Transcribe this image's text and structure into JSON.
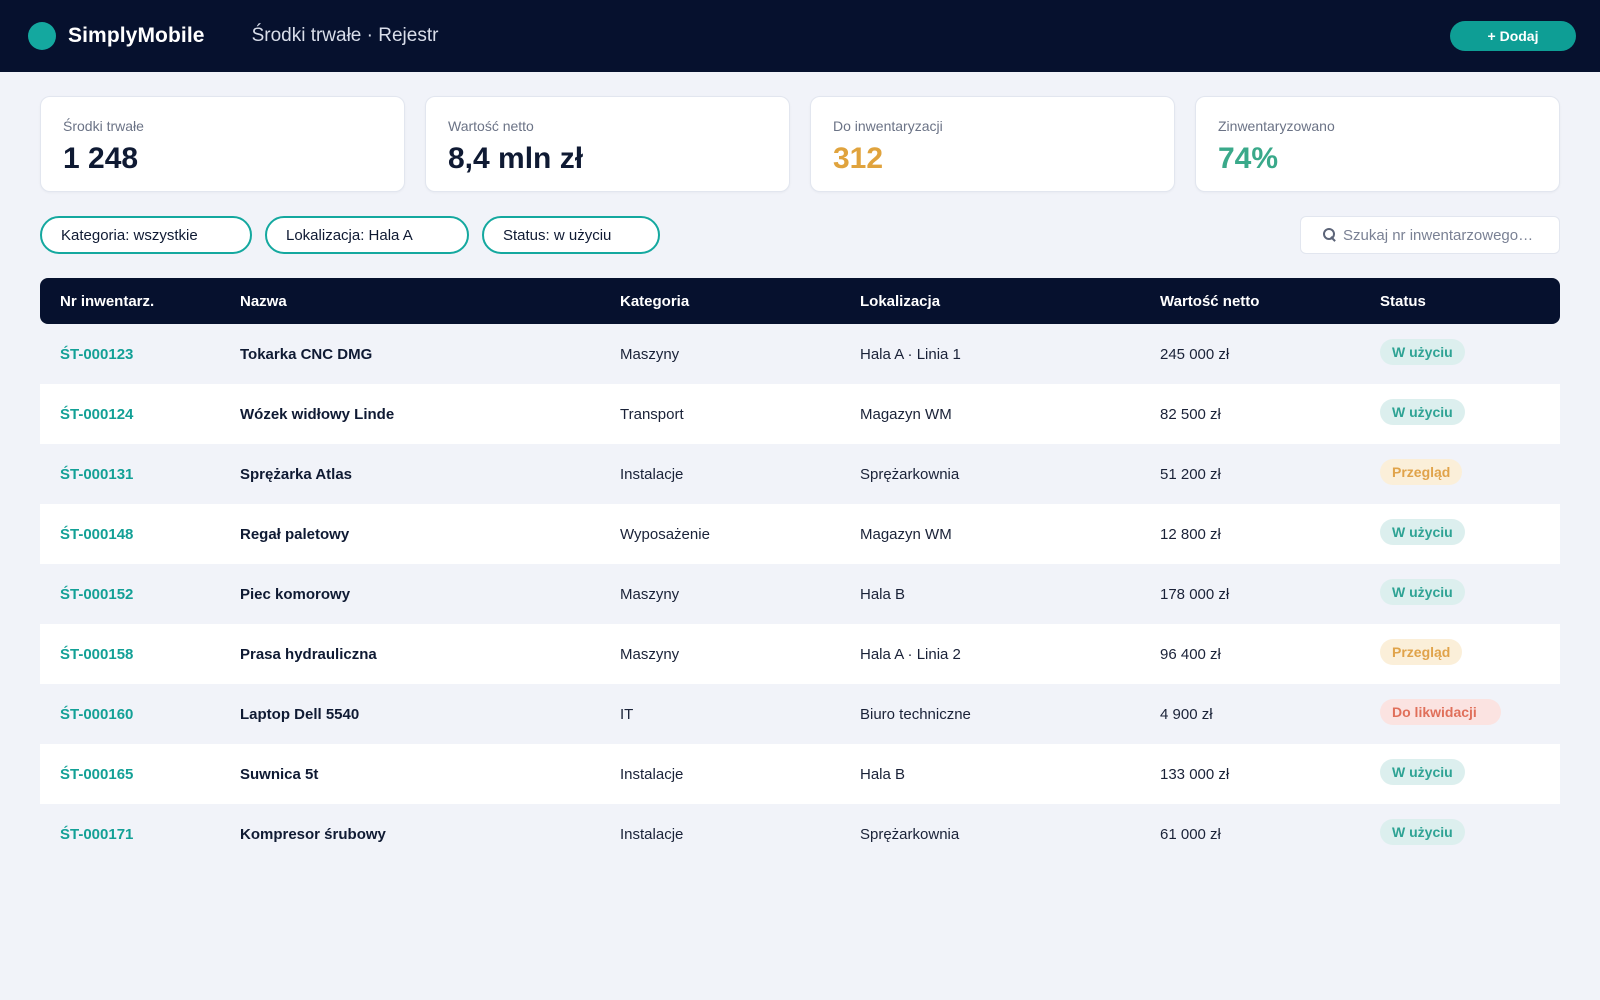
{
  "header": {
    "app_name": "SimplyMobile",
    "page_title": "Środki trwałe · Rejestr",
    "add_label": "+ Dodaj"
  },
  "kpis": [
    {
      "label": "Środki trwałe",
      "value": "1 248",
      "color": "#0f1a33"
    },
    {
      "label": "Wartość netto",
      "value": "8,4 mln zł",
      "color": "#0f1a33"
    },
    {
      "label": "Do inwentaryzacji",
      "value": "312",
      "color": "#e0a33d"
    },
    {
      "label": "Zinwentaryzowano",
      "value": "74%",
      "color": "#3aa98a"
    }
  ],
  "filters": {
    "category": "Kategoria: wszystkie",
    "location": "Lokalizacja: Hala A",
    "status": "Status: w użyciu"
  },
  "search": {
    "placeholder": "Szukaj nr inwentarzowego…"
  },
  "table": {
    "columns": [
      "Nr inwentarz.",
      "Nazwa",
      "Kategoria",
      "Lokalizacja",
      "Wartość netto",
      "Status"
    ],
    "rows": [
      {
        "id": "ŚT-000123",
        "name": "Tokarka CNC DMG",
        "category": "Maszyny",
        "location": "Hala A · Linia 1",
        "value": "245 000 zł",
        "status": "W użyciu",
        "status_type": "use"
      },
      {
        "id": "ŚT-000124",
        "name": "Wózek widłowy Linde",
        "category": "Transport",
        "location": "Magazyn WM",
        "value": "82 500 zł",
        "status": "W użyciu",
        "status_type": "use"
      },
      {
        "id": "ŚT-000131",
        "name": "Sprężarka Atlas",
        "category": "Instalacje",
        "location": "Sprężarkownia",
        "value": "51 200 zł",
        "status": "Przegląd",
        "status_type": "review"
      },
      {
        "id": "ŚT-000148",
        "name": "Regał paletowy",
        "category": "Wyposażenie",
        "location": "Magazyn WM",
        "value": "12 800 zł",
        "status": "W użyciu",
        "status_type": "use"
      },
      {
        "id": "ŚT-000152",
        "name": "Piec komorowy",
        "category": "Maszyny",
        "location": "Hala B",
        "value": "178 000 zł",
        "status": "W użyciu",
        "status_type": "use"
      },
      {
        "id": "ŚT-000158",
        "name": "Prasa hydrauliczna",
        "category": "Maszyny",
        "location": "Hala A · Linia 2",
        "value": "96 400 zł",
        "status": "Przegląd",
        "status_type": "review"
      },
      {
        "id": "ŚT-000160",
        "name": "Laptop Dell 5540",
        "category": "IT",
        "location": "Biuro techniczne",
        "value": "4 900 zł",
        "status": "Do likwidacji",
        "status_type": "liq"
      },
      {
        "id": "ŚT-000165",
        "name": "Suwnica 5t",
        "category": "Instalacje",
        "location": "Hala B",
        "value": "133 000 zł",
        "status": "W użyciu",
        "status_type": "use"
      },
      {
        "id": "ŚT-000171",
        "name": "Kompresor śrubowy",
        "category": "Instalacje",
        "location": "Sprężarkownia",
        "value": "61 000 zł",
        "status": "W użyciu",
        "status_type": "use"
      }
    ]
  }
}
